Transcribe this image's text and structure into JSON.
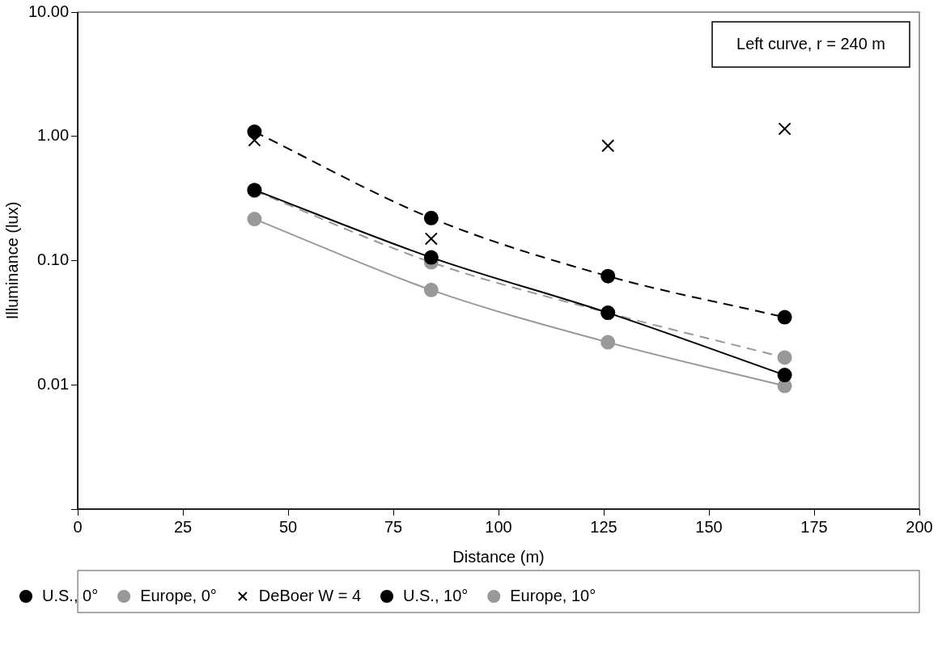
{
  "chart_data": {
    "type": "line",
    "xlabel": "Distance (m)",
    "ylabel": "Illuminance (lux)",
    "annotations": [
      "Left curve, r = 240 m"
    ],
    "x": [
      42,
      84,
      126,
      168
    ],
    "series": [
      {
        "name": "U.S., 0°",
        "color": "#000000",
        "marker": "circle",
        "line_style": "solid",
        "values": [
          0.37,
          0.106,
          0.038,
          0.012
        ]
      },
      {
        "name": "Europe, 0°",
        "color": "#999999",
        "marker": "circle",
        "line_style": "solid",
        "values": [
          0.216,
          0.058,
          0.022,
          0.0098
        ]
      },
      {
        "name": "DeBoer W = 4",
        "type": "scatter",
        "color": "#000000",
        "marker": "cross",
        "values": [
          0.93,
          0.15,
          0.84,
          1.15
        ]
      },
      {
        "name": "U.S., 10°",
        "color": "#000000",
        "marker": "circle",
        "line_style": "dashed",
        "values": [
          1.09,
          0.22,
          0.075,
          0.035
        ]
      },
      {
        "name": "Europe, 10°",
        "color": "#999999",
        "marker": "circle",
        "line_style": "dashed",
        "values": [
          0.365,
          0.097,
          0.038,
          0.0166
        ]
      }
    ],
    "xlim": [
      0,
      200
    ],
    "xticks": [
      0,
      25,
      50,
      75,
      100,
      125,
      150,
      175,
      200
    ],
    "ylim": [
      0.001,
      10
    ],
    "yticks": [
      {
        "value": 0.001,
        "label": null
      },
      {
        "value": 0.01,
        "label": "0.01"
      },
      {
        "value": 0.1,
        "label": "0.10"
      },
      {
        "value": 1,
        "label": "1.00"
      },
      {
        "value": 10,
        "label": "10.00"
      }
    ],
    "log": "y",
    "grid": false,
    "legend": "bottom"
  }
}
